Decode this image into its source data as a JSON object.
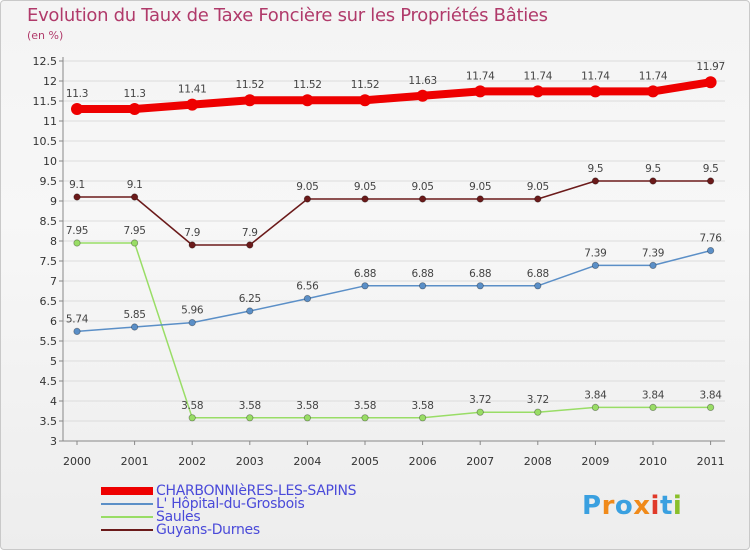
{
  "colors": {
    "charbonnieres": "#ee0000",
    "hopital": "#5b8fc7",
    "saules": "#99dd66",
    "guyans": "#6b1a1a",
    "title": "#b03a6a",
    "legend_text": "#4a4ad9"
  },
  "brand": {
    "text": "Proxiti",
    "colors": [
      "#3aa0e0",
      "#f08a1a",
      "#3aa0e0",
      "#f08a1a",
      "#e03a2a",
      "#3aa0e0",
      "#8abf2a"
    ]
  },
  "chart_data": {
    "type": "line",
    "title": "Evolution du Taux de Taxe Foncière sur les Propriétés Bâties",
    "ylabel_unit": "(en %)",
    "categories": [
      "2000",
      "2001",
      "2002",
      "2003",
      "2004",
      "2005",
      "2006",
      "2007",
      "2008",
      "2009",
      "2010",
      "2011"
    ],
    "ylim": [
      3,
      12.5
    ],
    "yticks": [
      "3",
      "3.5",
      "4",
      "4.5",
      "5",
      "5.5",
      "6",
      "6.5",
      "7",
      "7.5",
      "8",
      "8.5",
      "9",
      "9.5",
      "10",
      "10.5",
      "11",
      "11.5",
      "12",
      "12.5"
    ],
    "series": [
      {
        "name": "CHARBONNIèRES-LES-SAPINS",
        "key": "charbonnieres",
        "values": [
          11.3,
          11.3,
          11.41,
          11.52,
          11.52,
          11.52,
          11.63,
          11.74,
          11.74,
          11.74,
          11.74,
          11.97
        ],
        "labels": [
          "11.3",
          "11.3",
          "11.41",
          "11.52",
          "11.52",
          "11.52",
          "11.63",
          "11.74",
          "11.74",
          "11.74",
          "11.74",
          "11.97"
        ]
      },
      {
        "name": "L' Hôpital-du-Grosbois",
        "key": "hopital",
        "values": [
          5.74,
          5.85,
          5.96,
          6.25,
          6.56,
          6.88,
          6.88,
          6.88,
          6.88,
          7.39,
          7.39,
          7.76
        ],
        "labels": [
          "5.74",
          "5.85",
          "5.96",
          "6.25",
          "6.56",
          "6.88",
          "6.88",
          "6.88",
          "6.88",
          "7.39",
          "7.39",
          "7.76"
        ]
      },
      {
        "name": "Saules",
        "key": "saules",
        "values": [
          7.95,
          7.95,
          3.58,
          3.58,
          3.58,
          3.58,
          3.58,
          3.72,
          3.72,
          3.84,
          3.84,
          3.84
        ],
        "labels": [
          "7.95",
          "7.95",
          "3.58",
          "3.58",
          "3.58",
          "3.58",
          "3.58",
          "3.72",
          "3.72",
          "3.84",
          "3.84",
          "3.84"
        ]
      },
      {
        "name": "Guyans-Durnes",
        "key": "guyans",
        "values": [
          9.1,
          9.1,
          7.9,
          7.9,
          9.05,
          9.05,
          9.05,
          9.05,
          9.05,
          9.5,
          9.5,
          9.5
        ],
        "labels": [
          "9.1",
          "9.1",
          "7.9",
          "7.9",
          "9.05",
          "9.05",
          "9.05",
          "9.05",
          "9.05",
          "9.5",
          "9.5",
          "9.5"
        ]
      }
    ]
  }
}
